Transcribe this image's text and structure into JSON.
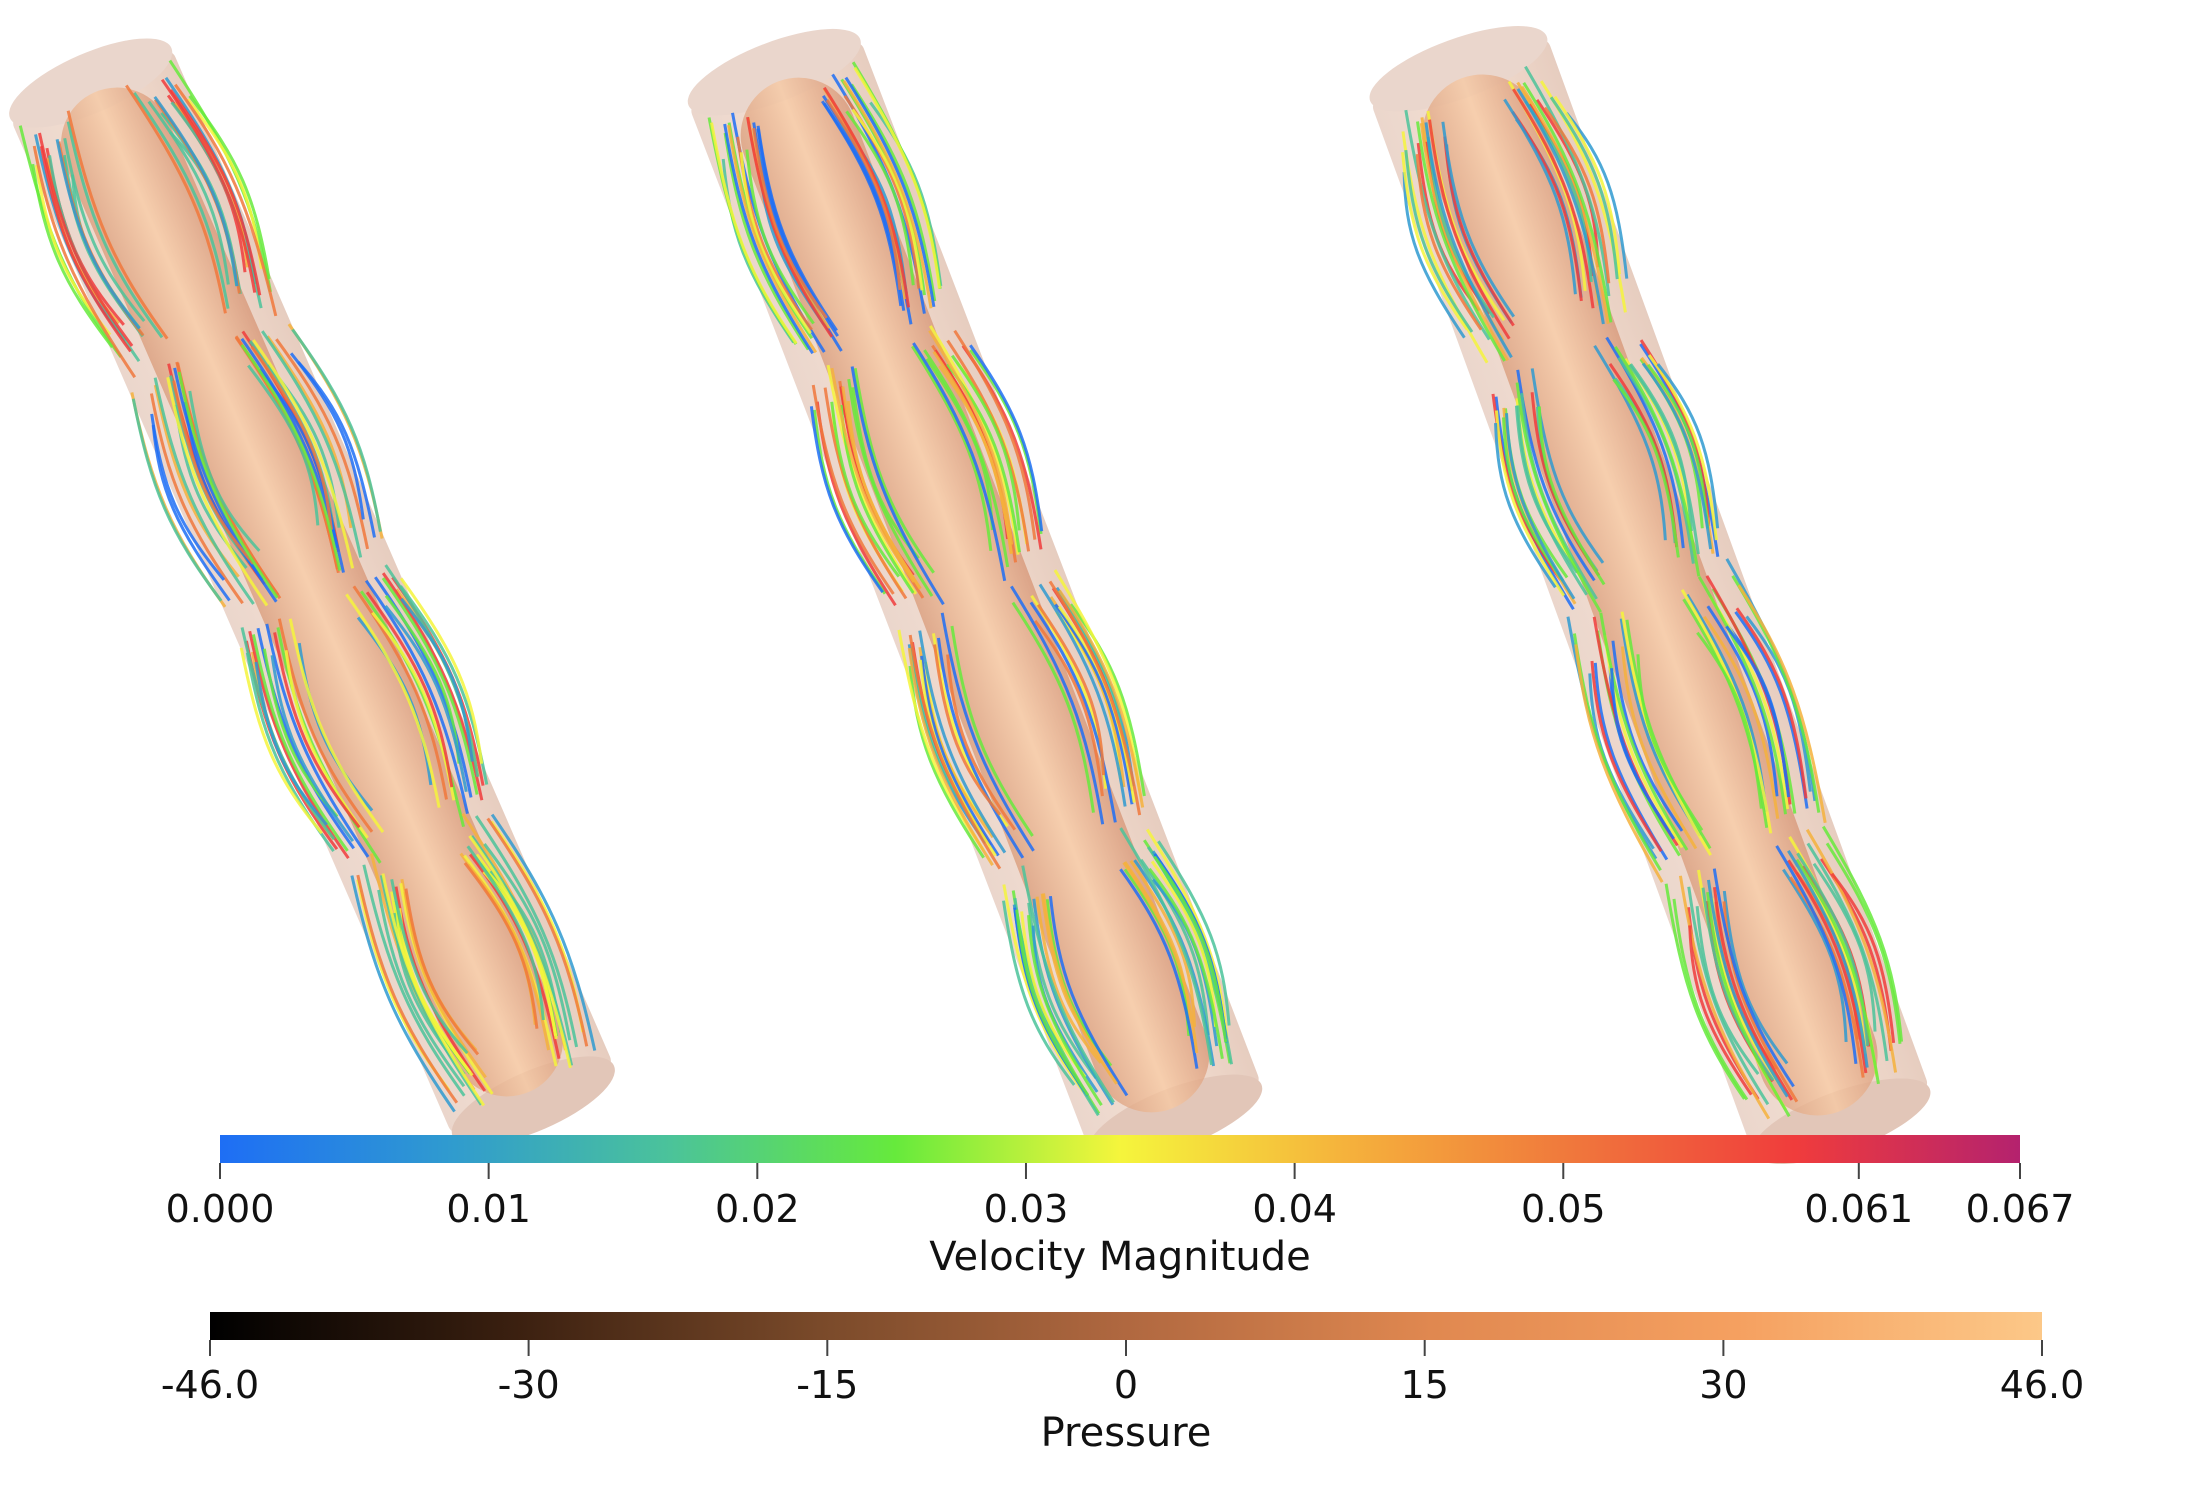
{
  "figure": {
    "panel_count": 3
  },
  "velocity_legend": {
    "title": "Velocity Magnitude",
    "min_label": "0.000",
    "max_label": "0.067",
    "range": [
      0.0,
      0.067
    ],
    "ticks": [
      {
        "value": 0.0,
        "label": "0.000"
      },
      {
        "value": 0.01,
        "label": "0.01"
      },
      {
        "value": 0.02,
        "label": "0.02"
      },
      {
        "value": 0.03,
        "label": "0.03"
      },
      {
        "value": 0.04,
        "label": "0.04"
      },
      {
        "value": 0.05,
        "label": "0.05"
      },
      {
        "value": 0.061,
        "label": "0.061"
      },
      {
        "value": 0.067,
        "label": "0.067"
      }
    ],
    "colormap": [
      "#1e6ef5",
      "#2f9ad0",
      "#4bc39a",
      "#66ea3c",
      "#f5f53c",
      "#f5b23c",
      "#f0783c",
      "#f03c3c",
      "#b4226e"
    ]
  },
  "pressure_legend": {
    "title": "Pressure",
    "range": [
      -46.0,
      46.0
    ],
    "ticks": [
      {
        "value": -46.0,
        "label": "-46.0"
      },
      {
        "value": -30,
        "label": "-30"
      },
      {
        "value": -15,
        "label": "-15"
      },
      {
        "value": 0,
        "label": "0"
      },
      {
        "value": 15,
        "label": "15"
      },
      {
        "value": 30,
        "label": "30"
      },
      {
        "value": 46.0,
        "label": "46.0"
      }
    ],
    "colormap": [
      "#000000",
      "#3b2010",
      "#7a4a2a",
      "#b06840",
      "#e08850",
      "#f5a060",
      "#fcc888"
    ]
  }
}
